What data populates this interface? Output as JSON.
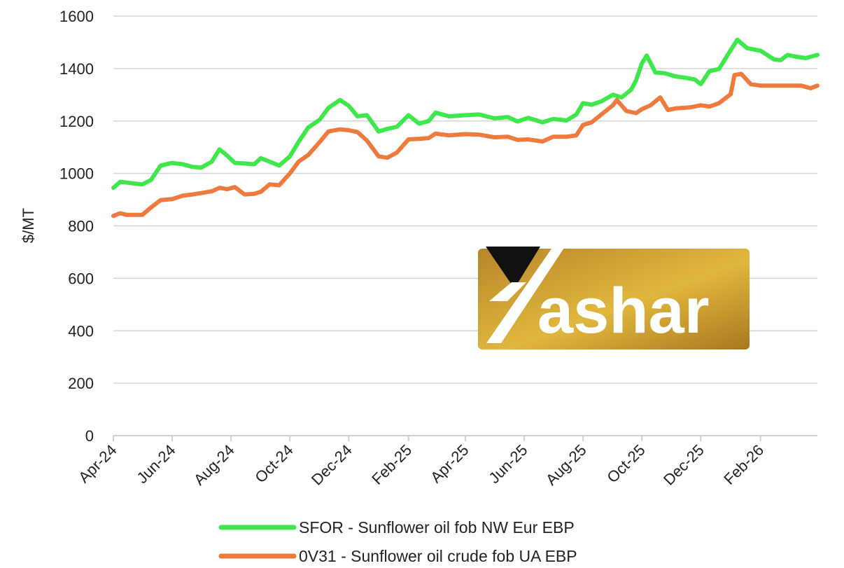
{
  "chart_data": {
    "type": "line",
    "title": "",
    "xlabel": "",
    "ylabel": "$/MT",
    "ylim": [
      0,
      1600
    ],
    "yticks": [
      0,
      200,
      400,
      600,
      800,
      1000,
      1200,
      1400,
      1600
    ],
    "x_tick_labels": [
      "Apr-24",
      "Jun-24",
      "Aug-24",
      "Oct-24",
      "Dec-24",
      "Feb-25",
      "Apr-25",
      "Jun-25",
      "Aug-25",
      "Oct-25",
      "Dec-25",
      "Feb-26"
    ],
    "x_domain": [
      "2024-04-01",
      "2026-04-01"
    ],
    "grid": "horizontal",
    "legend_position": "bottom",
    "series": [
      {
        "name": "SFOR - Sunflower oil fob NW Eur EBP",
        "color": "#3ee84a",
        "points": [
          [
            "2024-04-01",
            945
          ],
          [
            "2024-04-08",
            968
          ],
          [
            "2024-04-15",
            965
          ],
          [
            "2024-04-22",
            962
          ],
          [
            "2024-05-01",
            958
          ],
          [
            "2024-05-10",
            975
          ],
          [
            "2024-05-20",
            1030
          ],
          [
            "2024-06-01",
            1040
          ],
          [
            "2024-06-12",
            1035
          ],
          [
            "2024-06-22",
            1025
          ],
          [
            "2024-07-01",
            1022
          ],
          [
            "2024-07-12",
            1045
          ],
          [
            "2024-07-20",
            1092
          ],
          [
            "2024-07-28",
            1068
          ],
          [
            "2024-08-05",
            1040
          ],
          [
            "2024-08-15",
            1038
          ],
          [
            "2024-08-25",
            1035
          ],
          [
            "2024-09-01",
            1058
          ],
          [
            "2024-09-10",
            1045
          ],
          [
            "2024-09-20",
            1030
          ],
          [
            "2024-10-01",
            1065
          ],
          [
            "2024-10-10",
            1120
          ],
          [
            "2024-10-20",
            1175
          ],
          [
            "2024-11-01",
            1205
          ],
          [
            "2024-11-10",
            1250
          ],
          [
            "2024-11-22",
            1280
          ],
          [
            "2024-12-01",
            1258
          ],
          [
            "2024-12-10",
            1218
          ],
          [
            "2024-12-20",
            1222
          ],
          [
            "2025-01-01",
            1160
          ],
          [
            "2025-01-10",
            1170
          ],
          [
            "2025-01-20",
            1178
          ],
          [
            "2025-02-01",
            1222
          ],
          [
            "2025-02-12",
            1190
          ],
          [
            "2025-02-22",
            1200
          ],
          [
            "2025-03-01",
            1232
          ],
          [
            "2025-03-15",
            1218
          ],
          [
            "2025-04-01",
            1222
          ],
          [
            "2025-04-15",
            1225
          ],
          [
            "2025-05-01",
            1210
          ],
          [
            "2025-05-15",
            1215
          ],
          [
            "2025-05-25",
            1198
          ],
          [
            "2025-06-05",
            1212
          ],
          [
            "2025-06-20",
            1195
          ],
          [
            "2025-07-01",
            1208
          ],
          [
            "2025-07-15",
            1202
          ],
          [
            "2025-07-25",
            1225
          ],
          [
            "2025-08-01",
            1268
          ],
          [
            "2025-08-10",
            1262
          ],
          [
            "2025-08-20",
            1275
          ],
          [
            "2025-09-01",
            1300
          ],
          [
            "2025-09-10",
            1290
          ],
          [
            "2025-09-20",
            1320
          ],
          [
            "2025-09-25",
            1355
          ],
          [
            "2025-10-01",
            1420
          ],
          [
            "2025-10-06",
            1450
          ],
          [
            "2025-10-15",
            1385
          ],
          [
            "2025-10-25",
            1382
          ],
          [
            "2025-11-05",
            1370
          ],
          [
            "2025-11-15",
            1365
          ],
          [
            "2025-11-25",
            1358
          ],
          [
            "2025-12-01",
            1340
          ],
          [
            "2025-12-10",
            1390
          ],
          [
            "2025-12-20",
            1398
          ],
          [
            "2026-01-01",
            1470
          ],
          [
            "2026-01-08",
            1510
          ],
          [
            "2026-01-18",
            1478
          ],
          [
            "2026-02-01",
            1468
          ],
          [
            "2026-02-15",
            1435
          ],
          [
            "2026-02-22",
            1432
          ],
          [
            "2026-03-01",
            1452
          ],
          [
            "2026-03-10",
            1445
          ],
          [
            "2026-03-20",
            1440
          ],
          [
            "2026-04-01",
            1452
          ]
        ]
      },
      {
        "name": "0V31 - Sunflower oil crude fob UA EBP",
        "color": "#ee7a3d",
        "points": [
          [
            "2024-04-01",
            838
          ],
          [
            "2024-04-08",
            848
          ],
          [
            "2024-04-15",
            842
          ],
          [
            "2024-04-22",
            842
          ],
          [
            "2024-05-01",
            842
          ],
          [
            "2024-05-10",
            870
          ],
          [
            "2024-05-20",
            898
          ],
          [
            "2024-06-01",
            902
          ],
          [
            "2024-06-12",
            915
          ],
          [
            "2024-06-22",
            920
          ],
          [
            "2024-07-01",
            925
          ],
          [
            "2024-07-12",
            932
          ],
          [
            "2024-07-20",
            945
          ],
          [
            "2024-07-28",
            940
          ],
          [
            "2024-08-05",
            948
          ],
          [
            "2024-08-15",
            920
          ],
          [
            "2024-08-25",
            922
          ],
          [
            "2024-09-01",
            930
          ],
          [
            "2024-09-10",
            958
          ],
          [
            "2024-09-20",
            955
          ],
          [
            "2024-10-01",
            1000
          ],
          [
            "2024-10-10",
            1045
          ],
          [
            "2024-10-20",
            1070
          ],
          [
            "2024-11-01",
            1120
          ],
          [
            "2024-11-10",
            1160
          ],
          [
            "2024-11-22",
            1168
          ],
          [
            "2024-12-01",
            1165
          ],
          [
            "2024-12-10",
            1158
          ],
          [
            "2024-12-20",
            1125
          ],
          [
            "2025-01-01",
            1065
          ],
          [
            "2025-01-10",
            1060
          ],
          [
            "2025-01-20",
            1080
          ],
          [
            "2025-02-01",
            1130
          ],
          [
            "2025-02-12",
            1132
          ],
          [
            "2025-02-22",
            1135
          ],
          [
            "2025-03-01",
            1152
          ],
          [
            "2025-03-15",
            1145
          ],
          [
            "2025-04-01",
            1150
          ],
          [
            "2025-04-15",
            1148
          ],
          [
            "2025-05-01",
            1138
          ],
          [
            "2025-05-15",
            1140
          ],
          [
            "2025-05-25",
            1128
          ],
          [
            "2025-06-05",
            1130
          ],
          [
            "2025-06-20",
            1122
          ],
          [
            "2025-07-01",
            1140
          ],
          [
            "2025-07-15",
            1140
          ],
          [
            "2025-07-25",
            1145
          ],
          [
            "2025-08-01",
            1185
          ],
          [
            "2025-08-10",
            1195
          ],
          [
            "2025-08-20",
            1225
          ],
          [
            "2025-09-01",
            1260
          ],
          [
            "2025-09-05",
            1280
          ],
          [
            "2025-09-15",
            1238
          ],
          [
            "2025-09-25",
            1230
          ],
          [
            "2025-10-01",
            1245
          ],
          [
            "2025-10-10",
            1260
          ],
          [
            "2025-10-20",
            1290
          ],
          [
            "2025-10-28",
            1242
          ],
          [
            "2025-11-05",
            1248
          ],
          [
            "2025-11-20",
            1252
          ],
          [
            "2025-12-01",
            1260
          ],
          [
            "2025-12-10",
            1255
          ],
          [
            "2025-12-20",
            1268
          ],
          [
            "2026-01-01",
            1302
          ],
          [
            "2026-01-05",
            1375
          ],
          [
            "2026-01-12",
            1380
          ],
          [
            "2026-01-22",
            1340
          ],
          [
            "2026-02-01",
            1335
          ],
          [
            "2026-02-15",
            1335
          ],
          [
            "2026-03-01",
            1335
          ],
          [
            "2026-03-15",
            1335
          ],
          [
            "2026-03-25",
            1325
          ],
          [
            "2026-04-01",
            1335
          ]
        ]
      }
    ]
  },
  "watermark": {
    "text": "Yashar",
    "gold_color": "#c99a2e",
    "dark_color": "#111111"
  }
}
